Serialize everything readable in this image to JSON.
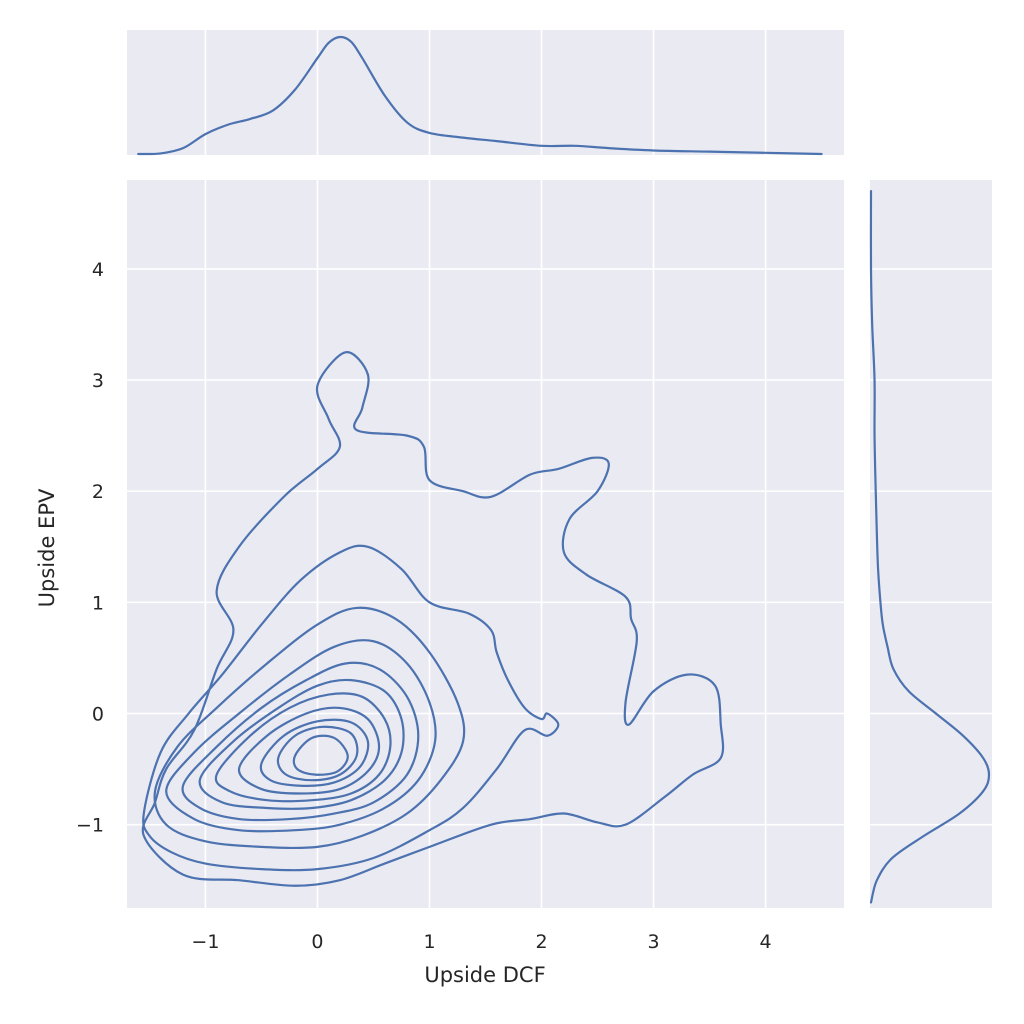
{
  "chart_data": {
    "type": "kde_jointplot",
    "xlabel": "Upside DCF",
    "ylabel": "Upside EPV",
    "xlim": [
      -1.7,
      4.7
    ],
    "ylim": [
      -1.75,
      4.8
    ],
    "x_ticks": [
      -1,
      0,
      1,
      2,
      3,
      4
    ],
    "y_ticks": [
      -1,
      0,
      1,
      2,
      3,
      4
    ],
    "x_tick_labels": [
      "−1",
      "0",
      "1",
      "2",
      "3",
      "4"
    ],
    "y_tick_labels": [
      "−1",
      "0",
      "1",
      "2",
      "3",
      "4"
    ],
    "grid": true,
    "line_color": "#4c72b0",
    "background_color": "#eaeaf2",
    "marginal_x": {
      "x": [
        -1.6,
        -1.4,
        -1.2,
        -1.0,
        -0.8,
        -0.6,
        -0.4,
        -0.2,
        0.0,
        0.1,
        0.2,
        0.3,
        0.4,
        0.6,
        0.8,
        1.0,
        1.3,
        1.6,
        2.0,
        2.3,
        2.6,
        3.0,
        3.5,
        4.0,
        4.5
      ],
      "density": [
        0.0,
        0.005,
        0.05,
        0.17,
        0.25,
        0.3,
        0.37,
        0.55,
        0.82,
        0.95,
        1.0,
        0.96,
        0.82,
        0.5,
        0.27,
        0.18,
        0.14,
        0.11,
        0.07,
        0.07,
        0.05,
        0.03,
        0.02,
        0.01,
        0.0
      ]
    },
    "marginal_y": {
      "y": [
        -1.7,
        -1.5,
        -1.3,
        -1.1,
        -0.9,
        -0.7,
        -0.55,
        -0.4,
        -0.2,
        0.0,
        0.2,
        0.4,
        0.6,
        0.8,
        1.0,
        1.3,
        1.6,
        2.0,
        2.5,
        3.0,
        3.5,
        4.0,
        4.7
      ],
      "density": [
        0.0,
        0.05,
        0.18,
        0.45,
        0.75,
        0.95,
        1.0,
        0.95,
        0.78,
        0.55,
        0.32,
        0.19,
        0.14,
        0.1,
        0.08,
        0.06,
        0.05,
        0.04,
        0.03,
        0.03,
        0.01,
        0.0,
        0.0
      ]
    },
    "contours": [
      {
        "level": 1,
        "points": [
          [
            -1.55,
            -1.1
          ],
          [
            -1.45,
            -0.8
          ],
          [
            -1.35,
            -0.5
          ],
          [
            -1.1,
            -0.15
          ],
          [
            -0.9,
            0.4
          ],
          [
            -0.75,
            0.75
          ],
          [
            -0.9,
            1.1
          ],
          [
            -0.7,
            1.5
          ],
          [
            -0.3,
            1.95
          ],
          [
            0.0,
            2.2
          ],
          [
            0.2,
            2.4
          ],
          [
            0.1,
            2.65
          ],
          [
            0.0,
            2.95
          ],
          [
            0.25,
            3.25
          ],
          [
            0.45,
            3.05
          ],
          [
            0.4,
            2.75
          ],
          [
            0.35,
            2.55
          ],
          [
            0.8,
            2.5
          ],
          [
            0.95,
            2.4
          ],
          [
            1.0,
            2.1
          ],
          [
            1.3,
            2.0
          ],
          [
            1.55,
            1.95
          ],
          [
            1.9,
            2.15
          ],
          [
            2.15,
            2.2
          ],
          [
            2.45,
            2.3
          ],
          [
            2.6,
            2.25
          ],
          [
            2.5,
            2.0
          ],
          [
            2.25,
            1.75
          ],
          [
            2.2,
            1.45
          ],
          [
            2.4,
            1.25
          ],
          [
            2.75,
            1.05
          ],
          [
            2.8,
            0.85
          ],
          [
            2.85,
            0.65
          ],
          [
            2.75,
            0.1
          ],
          [
            2.78,
            -0.1
          ],
          [
            3.0,
            0.2
          ],
          [
            3.3,
            0.35
          ],
          [
            3.55,
            0.25
          ],
          [
            3.6,
            -0.1
          ],
          [
            3.6,
            -0.4
          ],
          [
            3.35,
            -0.55
          ],
          [
            3.1,
            -0.75
          ],
          [
            2.75,
            -1.0
          ],
          [
            2.5,
            -0.98
          ],
          [
            2.2,
            -0.9
          ],
          [
            1.9,
            -0.95
          ],
          [
            1.55,
            -1.0
          ],
          [
            1.0,
            -1.2
          ],
          [
            0.6,
            -1.35
          ],
          [
            0.2,
            -1.5
          ],
          [
            -0.2,
            -1.55
          ],
          [
            -0.7,
            -1.5
          ],
          [
            -1.2,
            -1.45
          ],
          [
            -1.55,
            -1.1
          ]
        ]
      },
      {
        "level": 2,
        "points": [
          [
            -1.55,
            -0.9
          ],
          [
            -1.4,
            -0.35
          ],
          [
            -1.15,
            0.0
          ],
          [
            -0.85,
            0.35
          ],
          [
            -0.5,
            0.8
          ],
          [
            -0.15,
            1.2
          ],
          [
            0.2,
            1.45
          ],
          [
            0.45,
            1.5
          ],
          [
            0.75,
            1.3
          ],
          [
            1.0,
            1.0
          ],
          [
            1.35,
            0.9
          ],
          [
            1.55,
            0.75
          ],
          [
            1.6,
            0.55
          ],
          [
            1.7,
            0.3
          ],
          [
            1.85,
            0.05
          ],
          [
            2.0,
            -0.05
          ],
          [
            2.05,
            0.0
          ],
          [
            2.15,
            -0.1
          ],
          [
            2.05,
            -0.2
          ],
          [
            1.85,
            -0.15
          ],
          [
            1.6,
            -0.5
          ],
          [
            1.3,
            -0.85
          ],
          [
            1.0,
            -1.05
          ],
          [
            0.5,
            -1.3
          ],
          [
            0.0,
            -1.4
          ],
          [
            -0.5,
            -1.4
          ],
          [
            -1.0,
            -1.35
          ],
          [
            -1.3,
            -1.25
          ],
          [
            -1.5,
            -1.1
          ],
          [
            -1.55,
            -0.9
          ]
        ]
      },
      {
        "level": 3,
        "points": [
          [
            -1.45,
            -0.7
          ],
          [
            -1.25,
            -0.3
          ],
          [
            -0.9,
            0.05
          ],
          [
            -0.45,
            0.45
          ],
          [
            0.0,
            0.8
          ],
          [
            0.35,
            0.95
          ],
          [
            0.7,
            0.85
          ],
          [
            1.0,
            0.55
          ],
          [
            1.25,
            0.1
          ],
          [
            1.3,
            -0.25
          ],
          [
            1.1,
            -0.6
          ],
          [
            0.8,
            -0.9
          ],
          [
            0.4,
            -1.1
          ],
          [
            0.0,
            -1.2
          ],
          [
            -0.5,
            -1.2
          ],
          [
            -1.0,
            -1.15
          ],
          [
            -1.35,
            -1.0
          ],
          [
            -1.45,
            -0.7
          ]
        ]
      },
      {
        "level": 4,
        "points": [
          [
            -1.35,
            -0.7
          ],
          [
            -1.1,
            -0.35
          ],
          [
            -0.7,
            0.0
          ],
          [
            -0.25,
            0.35
          ],
          [
            0.15,
            0.6
          ],
          [
            0.5,
            0.65
          ],
          [
            0.8,
            0.45
          ],
          [
            1.0,
            0.1
          ],
          [
            1.05,
            -0.25
          ],
          [
            0.9,
            -0.6
          ],
          [
            0.6,
            -0.85
          ],
          [
            0.2,
            -1.0
          ],
          [
            -0.2,
            -1.05
          ],
          [
            -0.7,
            -1.05
          ],
          [
            -1.1,
            -0.95
          ],
          [
            -1.35,
            -0.7
          ]
        ]
      },
      {
        "level": 5,
        "points": [
          [
            -1.2,
            -0.65
          ],
          [
            -0.9,
            -0.3
          ],
          [
            -0.5,
            0.05
          ],
          [
            -0.1,
            0.3
          ],
          [
            0.25,
            0.45
          ],
          [
            0.55,
            0.4
          ],
          [
            0.8,
            0.15
          ],
          [
            0.9,
            -0.2
          ],
          [
            0.8,
            -0.55
          ],
          [
            0.5,
            -0.8
          ],
          [
            0.15,
            -0.9
          ],
          [
            -0.25,
            -0.95
          ],
          [
            -0.7,
            -0.95
          ],
          [
            -1.05,
            -0.85
          ],
          [
            -1.2,
            -0.65
          ]
        ]
      },
      {
        "level": 6,
        "points": [
          [
            -1.05,
            -0.6
          ],
          [
            -0.75,
            -0.25
          ],
          [
            -0.35,
            0.05
          ],
          [
            0.0,
            0.25
          ],
          [
            0.3,
            0.3
          ],
          [
            0.6,
            0.2
          ],
          [
            0.75,
            -0.05
          ],
          [
            0.75,
            -0.35
          ],
          [
            0.6,
            -0.6
          ],
          [
            0.3,
            -0.78
          ],
          [
            -0.05,
            -0.85
          ],
          [
            -0.45,
            -0.85
          ],
          [
            -0.85,
            -0.8
          ],
          [
            -1.05,
            -0.6
          ]
        ]
      },
      {
        "level": 7,
        "points": [
          [
            -0.9,
            -0.55
          ],
          [
            -0.6,
            -0.2
          ],
          [
            -0.25,
            0.05
          ],
          [
            0.1,
            0.17
          ],
          [
            0.4,
            0.15
          ],
          [
            0.6,
            -0.05
          ],
          [
            0.65,
            -0.3
          ],
          [
            0.55,
            -0.55
          ],
          [
            0.3,
            -0.72
          ],
          [
            -0.05,
            -0.78
          ],
          [
            -0.45,
            -0.78
          ],
          [
            -0.78,
            -0.7
          ],
          [
            -0.9,
            -0.55
          ]
        ]
      },
      {
        "level": 8,
        "points": [
          [
            -0.7,
            -0.5
          ],
          [
            -0.45,
            -0.2
          ],
          [
            -0.1,
            0.0
          ],
          [
            0.2,
            0.05
          ],
          [
            0.45,
            -0.05
          ],
          [
            0.55,
            -0.3
          ],
          [
            0.45,
            -0.52
          ],
          [
            0.2,
            -0.68
          ],
          [
            -0.15,
            -0.72
          ],
          [
            -0.5,
            -0.68
          ],
          [
            -0.7,
            -0.5
          ]
        ]
      },
      {
        "level": 9,
        "points": [
          [
            -0.5,
            -0.45
          ],
          [
            -0.3,
            -0.2
          ],
          [
            0.0,
            -0.07
          ],
          [
            0.3,
            -0.08
          ],
          [
            0.45,
            -0.25
          ],
          [
            0.38,
            -0.48
          ],
          [
            0.15,
            -0.62
          ],
          [
            -0.15,
            -0.65
          ],
          [
            -0.42,
            -0.6
          ],
          [
            -0.5,
            -0.45
          ]
        ]
      },
      {
        "level": 10,
        "points": [
          [
            -0.35,
            -0.4
          ],
          [
            -0.2,
            -0.2
          ],
          [
            0.05,
            -0.12
          ],
          [
            0.3,
            -0.18
          ],
          [
            0.35,
            -0.38
          ],
          [
            0.2,
            -0.55
          ],
          [
            -0.05,
            -0.6
          ],
          [
            -0.28,
            -0.55
          ],
          [
            -0.35,
            -0.4
          ]
        ]
      },
      {
        "level": 11,
        "points": [
          [
            -0.2,
            -0.38
          ],
          [
            -0.05,
            -0.22
          ],
          [
            0.15,
            -0.22
          ],
          [
            0.27,
            -0.38
          ],
          [
            0.18,
            -0.52
          ],
          [
            -0.02,
            -0.55
          ],
          [
            -0.18,
            -0.5
          ],
          [
            -0.2,
            -0.38
          ]
        ]
      }
    ]
  }
}
